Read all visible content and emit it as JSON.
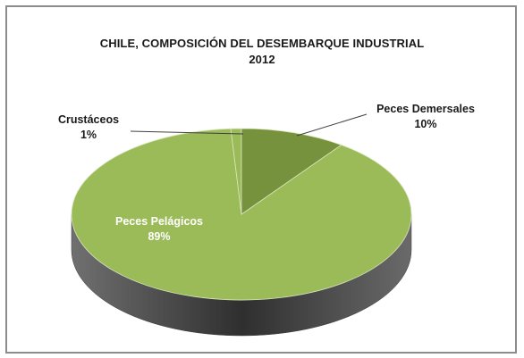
{
  "chart_data": {
    "type": "pie",
    "title_line1": "CHILE, COMPOSICIÓN DEL DESEMBARQUE INDUSTRIAL",
    "title_line2": "2012",
    "slices": [
      {
        "label": "Peces Pelágicos",
        "percent_label": "89%",
        "value": 89,
        "color": "#9bbb59"
      },
      {
        "label": "Crustáceos",
        "percent_label": "1%",
        "value": 1,
        "color": "#9bbb59"
      },
      {
        "label": "Peces Demersales",
        "percent_label": "10%",
        "value": 10,
        "color": "#76923c"
      }
    ],
    "three_d": true,
    "side_color": "#4d4d4d"
  }
}
